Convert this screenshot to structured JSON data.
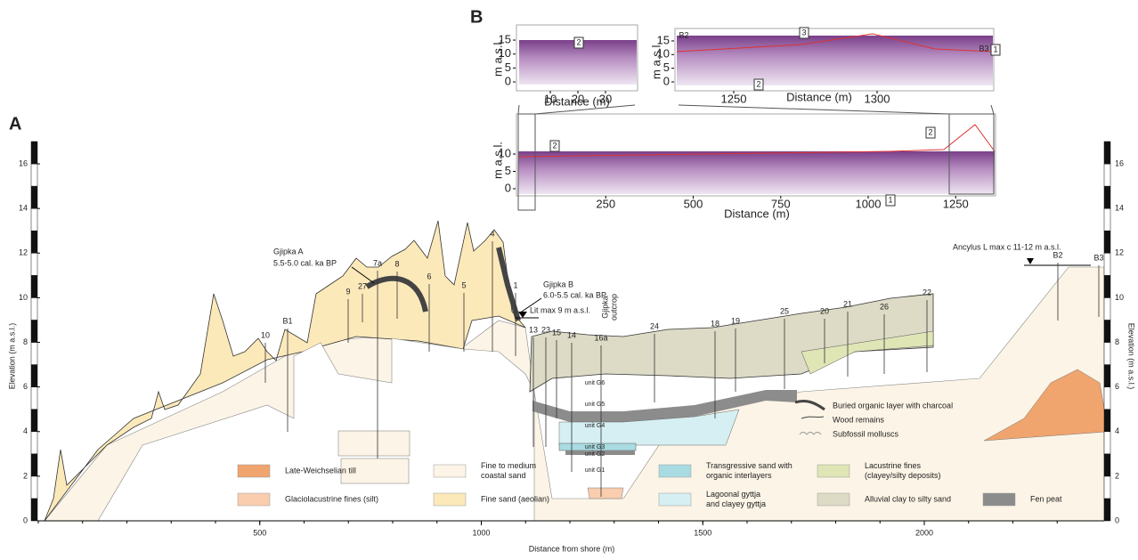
{
  "panel_a": {
    "label": "A",
    "y_axis_label": "Elevation (m a.s.l.)",
    "y2_axis_label": "Elevation (m a.s.l.)",
    "x_axis_label": "Distance from shore (m)",
    "yticks": [
      0,
      2,
      4,
      6,
      8,
      10,
      12,
      14,
      16
    ],
    "xticks": [
      500,
      1000,
      1500,
      2000
    ],
    "boreholes": [
      "10",
      "B1",
      "9",
      "27",
      "7a",
      "8",
      "6",
      "5",
      "4",
      "1",
      "13",
      "23",
      "15",
      "14",
      "16a",
      "24",
      "18",
      "19",
      "25",
      "20",
      "21",
      "26",
      "22",
      "B2",
      "B3"
    ],
    "annotations": {
      "gjipka_a": [
        "Gjipka A",
        "5.5-5.0 cal. ka BP"
      ],
      "gjipka_b": [
        "Gjipka B",
        "6.0-5.5 cal. ka BP"
      ],
      "lit_max": "Lit max 9 m a.s.l.",
      "outcrop": [
        "Gjipka",
        "outcrop"
      ],
      "ancylus": "Ancylus L max c 11-12 m a.s.l."
    },
    "units": [
      "unit G6",
      "unit G5",
      "unit G4",
      "unit G3",
      "unit G2",
      "unit G1"
    ],
    "symbols": [
      "Buried organic layer with charcoal",
      "Wood remains",
      "Subfossil molluscs"
    ],
    "legend": [
      {
        "label": [
          "Late-Weichselian till"
        ],
        "color": "#f0a46e"
      },
      {
        "label": [
          "Fine to medium",
          "coastal sand"
        ],
        "color": "#fcf4e6"
      },
      {
        "label": [
          "Transgressive sand with",
          "organic interlayers"
        ],
        "color": "#a9dbe2"
      },
      {
        "label": [
          "Lacustrine fines",
          "(clayey/silty deposits)"
        ],
        "color": "#e0e5b6"
      },
      {
        "label": [
          "Glaciolacustrine fines (silt)"
        ],
        "color": "#f9cdae"
      },
      {
        "label": [
          "Fine sand (aeolian)"
        ],
        "color": "#fce9ba"
      },
      {
        "label": [
          "Lagoonal gyttja",
          "and clayey gyttja"
        ],
        "color": "#d6eff3"
      },
      {
        "label": [
          "Alluvial clay to silty sand"
        ],
        "color": "#dddbc6"
      },
      {
        "label": [
          "Fen peat"
        ],
        "color": "#8c8c8c"
      }
    ]
  },
  "panel_b": {
    "label": "B",
    "insets": [
      {
        "y_axis_label": "m a.s.l.",
        "x_axis_label": "Distance (m)",
        "yticks": [
          0,
          5,
          10,
          15
        ],
        "xticks": [
          10,
          20,
          30
        ],
        "markers": [
          "2"
        ]
      },
      {
        "y_axis_label": "m a.s.l.",
        "x_axis_label": "Distance (m)",
        "yticks": [
          0,
          5,
          10,
          15
        ],
        "xticks": [
          1250,
          1300
        ],
        "markers": [
          "B2",
          "B3",
          "1",
          "2",
          "3"
        ]
      },
      {
        "y_axis_label": "m a.s.l.",
        "x_axis_label": "Distance (m)",
        "yticks": [
          0,
          5,
          10
        ],
        "xticks": [
          250,
          500,
          750,
          1000,
          1250
        ],
        "markers": [
          "2",
          "2",
          "1"
        ]
      }
    ]
  }
}
